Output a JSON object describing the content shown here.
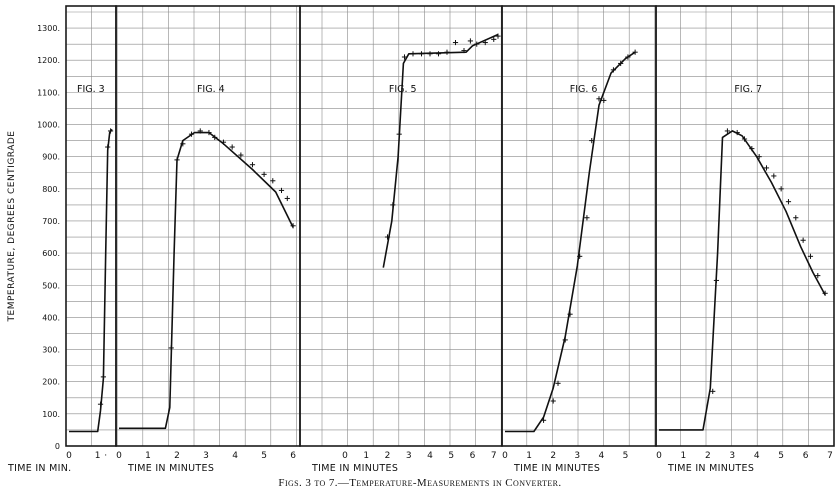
{
  "caption": "Figs. 3 to 7.—Temperature-Measurements in Converter.",
  "chart_data": {
    "type": "line",
    "ylabel": "TEMPERATURE, DEGREES CENTIGRADE",
    "ylim": [
      0,
      1350
    ],
    "yticks": [
      "0",
      "100.",
      "200.",
      "300.",
      "400.",
      "500.",
      "600.",
      "700.",
      "800.",
      "900.",
      "1000.",
      "1100.",
      "1200.",
      "1300."
    ],
    "grid": true,
    "panels": [
      {
        "label": "FIG. 3",
        "xlabel": "TIME IN MIN.",
        "xlim": [
          0,
          1.5
        ],
        "xticks": [
          "0",
          "1",
          "·"
        ],
        "curve": [
          [
            0,
            45
          ],
          [
            1.0,
            45
          ],
          [
            1.1,
            110
          ],
          [
            1.2,
            210
          ],
          [
            1.28,
            600
          ],
          [
            1.35,
            920
          ],
          [
            1.42,
            975
          ],
          [
            1.5,
            985
          ]
        ],
        "points": [
          [
            1.1,
            130
          ],
          [
            1.2,
            215
          ],
          [
            1.35,
            930
          ],
          [
            1.45,
            980
          ]
        ]
      },
      {
        "label": "FIG. 4",
        "xlabel": "TIME IN MINUTES",
        "xlim": [
          0,
          6.1
        ],
        "xticks": [
          "0",
          "1",
          "2",
          "3",
          "4",
          "5",
          "6"
        ],
        "curve": [
          [
            0,
            55
          ],
          [
            1.6,
            55
          ],
          [
            1.75,
            120
          ],
          [
            1.9,
            600
          ],
          [
            2.0,
            890
          ],
          [
            2.2,
            950
          ],
          [
            2.6,
            975
          ],
          [
            3.1,
            975
          ],
          [
            3.6,
            940
          ],
          [
            4.6,
            860
          ],
          [
            5.4,
            790
          ],
          [
            6.0,
            680
          ]
        ],
        "points": [
          [
            1.8,
            305
          ],
          [
            2.0,
            890
          ],
          [
            2.2,
            940
          ],
          [
            2.5,
            970
          ],
          [
            2.8,
            980
          ],
          [
            3.1,
            975
          ],
          [
            3.3,
            960
          ],
          [
            3.6,
            945
          ],
          [
            3.9,
            930
          ],
          [
            4.2,
            905
          ],
          [
            4.6,
            875
          ],
          [
            5.0,
            845
          ],
          [
            5.3,
            825
          ],
          [
            5.6,
            795
          ],
          [
            5.8,
            770
          ],
          [
            6.0,
            685
          ]
        ]
      },
      {
        "label": "FIG. 5",
        "xlabel": "TIME IN MINUTES",
        "xlim": [
          0,
          7.2
        ],
        "xticks": [
          "0",
          "1",
          "2",
          "3",
          "4",
          "5",
          "6",
          "7"
        ],
        "curve": [
          [
            1.8,
            555
          ],
          [
            2.2,
            700
          ],
          [
            2.5,
            900
          ],
          [
            2.75,
            1190
          ],
          [
            3.0,
            1220
          ],
          [
            5.7,
            1225
          ],
          [
            6.0,
            1245
          ],
          [
            7.2,
            1280
          ]
        ],
        "points": [
          [
            2.0,
            650
          ],
          [
            2.25,
            750
          ],
          [
            2.55,
            970
          ],
          [
            2.8,
            1210
          ],
          [
            3.2,
            1220
          ],
          [
            3.6,
            1220
          ],
          [
            4.0,
            1220
          ],
          [
            4.4,
            1220
          ],
          [
            4.8,
            1225
          ],
          [
            5.2,
            1255
          ],
          [
            5.6,
            1230
          ],
          [
            5.9,
            1260
          ],
          [
            6.2,
            1250
          ],
          [
            6.6,
            1255
          ],
          [
            7.0,
            1265
          ],
          [
            7.2,
            1275
          ]
        ]
      },
      {
        "label": "FIG. 6",
        "xlabel": "TIME IN MINUTES",
        "xlim": [
          0,
          6.1
        ],
        "xticks": [
          "0",
          "1",
          "2",
          "3",
          "4",
          "5"
        ],
        "curve": [
          [
            0,
            45
          ],
          [
            1.2,
            45
          ],
          [
            1.6,
            90
          ],
          [
            2.0,
            180
          ],
          [
            2.5,
            340
          ],
          [
            3.0,
            560
          ],
          [
            3.5,
            850
          ],
          [
            3.9,
            1060
          ],
          [
            4.4,
            1160
          ],
          [
            5.0,
            1205
          ],
          [
            5.4,
            1225
          ]
        ],
        "points": [
          [
            1.6,
            80
          ],
          [
            2.0,
            140
          ],
          [
            2.2,
            195
          ],
          [
            2.5,
            330
          ],
          [
            2.7,
            410
          ],
          [
            3.1,
            590
          ],
          [
            3.4,
            710
          ],
          [
            3.6,
            950
          ],
          [
            3.9,
            1080
          ],
          [
            4.1,
            1075
          ],
          [
            4.5,
            1170
          ],
          [
            4.8,
            1190
          ],
          [
            5.1,
            1210
          ],
          [
            5.4,
            1225
          ]
        ]
      },
      {
        "label": "FIG. 7",
        "xlabel": "TIME IN MINUTES",
        "xlim": [
          0,
          7.0
        ],
        "xticks": [
          "0",
          "1",
          "2",
          "3",
          "4",
          "5",
          "6",
          "7"
        ],
        "curve": [
          [
            0,
            50
          ],
          [
            1.8,
            50
          ],
          [
            2.1,
            180
          ],
          [
            2.4,
            600
          ],
          [
            2.6,
            960
          ],
          [
            3.0,
            980
          ],
          [
            3.4,
            965
          ],
          [
            4.0,
            900
          ],
          [
            4.6,
            820
          ],
          [
            5.2,
            730
          ],
          [
            5.8,
            620
          ],
          [
            6.3,
            540
          ],
          [
            6.8,
            470
          ]
        ],
        "points": [
          [
            2.2,
            170
          ],
          [
            2.35,
            515
          ],
          [
            2.8,
            980
          ],
          [
            3.2,
            975
          ],
          [
            3.5,
            955
          ],
          [
            3.8,
            925
          ],
          [
            4.1,
            900
          ],
          [
            4.4,
            865
          ],
          [
            4.7,
            840
          ],
          [
            5.0,
            800
          ],
          [
            5.3,
            760
          ],
          [
            5.6,
            710
          ],
          [
            5.9,
            640
          ],
          [
            6.2,
            590
          ],
          [
            6.5,
            530
          ],
          [
            6.8,
            475
          ]
        ]
      }
    ]
  }
}
